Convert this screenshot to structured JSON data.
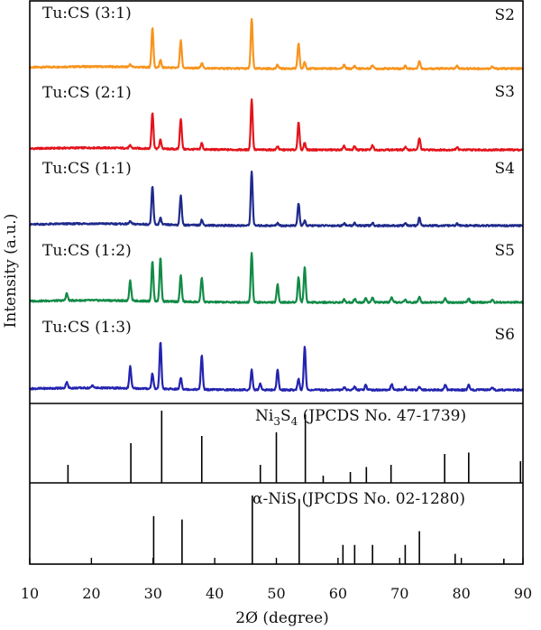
{
  "chart_data": {
    "type": "line",
    "xlabel": "2Ø (degree)",
    "ylabel": "Intensity (a.u.)",
    "xlim": [
      10,
      90
    ],
    "x_ticks": [
      "10",
      "20",
      "30",
      "40",
      "50",
      "60",
      "70",
      "80",
      "90"
    ],
    "grid": false,
    "series": [
      {
        "name": "Tu:CS (3:1)",
        "tag": "S2",
        "color": "#f7941d",
        "peaks": [
          [
            26.3,
            3
          ],
          [
            29.9,
            44
          ],
          [
            31.2,
            8
          ],
          [
            34.5,
            30
          ],
          [
            37.9,
            6
          ],
          [
            46.0,
            55
          ],
          [
            50.2,
            4
          ],
          [
            53.6,
            28
          ],
          [
            54.6,
            7
          ],
          [
            61.0,
            4
          ],
          [
            62.7,
            3
          ],
          [
            65.6,
            4
          ],
          [
            70.9,
            3
          ],
          [
            73.2,
            9
          ],
          [
            79.3,
            3
          ],
          [
            85.0,
            2
          ]
        ]
      },
      {
        "name": "Tu:CS (2:1)",
        "tag": "S3",
        "color": "#e3141c",
        "peaks": [
          [
            26.3,
            3
          ],
          [
            29.9,
            40
          ],
          [
            31.2,
            10
          ],
          [
            34.5,
            34
          ],
          [
            37.9,
            7
          ],
          [
            46.0,
            56
          ],
          [
            50.2,
            4
          ],
          [
            53.6,
            30
          ],
          [
            54.6,
            8
          ],
          [
            61.0,
            4
          ],
          [
            62.7,
            4
          ],
          [
            65.6,
            5
          ],
          [
            70.9,
            3
          ],
          [
            73.2,
            13
          ],
          [
            79.3,
            3
          ]
        ]
      },
      {
        "name": "Tu:CS (1:1)",
        "tag": "S4",
        "color": "#1f2a8c",
        "peaks": [
          [
            26.3,
            3
          ],
          [
            29.9,
            42
          ],
          [
            31.2,
            7
          ],
          [
            34.5,
            33
          ],
          [
            37.9,
            6
          ],
          [
            46.0,
            60
          ],
          [
            50.2,
            3
          ],
          [
            53.6,
            25
          ],
          [
            54.6,
            5
          ],
          [
            61.0,
            3
          ],
          [
            62.7,
            3
          ],
          [
            65.6,
            3
          ],
          [
            70.9,
            3
          ],
          [
            73.2,
            9
          ],
          [
            79.3,
            2
          ]
        ]
      },
      {
        "name": "Tu:CS (1:2)",
        "tag": "S5",
        "color": "#128b47",
        "peaks": [
          [
            16.0,
            8
          ],
          [
            26.3,
            22
          ],
          [
            29.9,
            44
          ],
          [
            31.2,
            48
          ],
          [
            34.5,
            29
          ],
          [
            37.9,
            27
          ],
          [
            46.0,
            55
          ],
          [
            50.2,
            20
          ],
          [
            53.6,
            28
          ],
          [
            54.6,
            39
          ],
          [
            61.0,
            3
          ],
          [
            62.7,
            4
          ],
          [
            64.5,
            5
          ],
          [
            65.6,
            5
          ],
          [
            68.7,
            5
          ],
          [
            70.9,
            3
          ],
          [
            73.2,
            7
          ],
          [
            77.4,
            5
          ],
          [
            81.2,
            4
          ],
          [
            85.0,
            3
          ]
        ]
      },
      {
        "name": "Tu:CS (1:3)",
        "tag": "S6",
        "color": "#2323b0",
        "peaks": [
          [
            16.0,
            7
          ],
          [
            20.2,
            3
          ],
          [
            26.3,
            24
          ],
          [
            29.9,
            17
          ],
          [
            31.2,
            52
          ],
          [
            34.5,
            13
          ],
          [
            37.9,
            38
          ],
          [
            46.0,
            22
          ],
          [
            47.4,
            7
          ],
          [
            50.2,
            22
          ],
          [
            53.6,
            12
          ],
          [
            54.6,
            48
          ],
          [
            61.0,
            3
          ],
          [
            62.7,
            4
          ],
          [
            64.5,
            6
          ],
          [
            68.7,
            6
          ],
          [
            70.9,
            3
          ],
          [
            73.2,
            4
          ],
          [
            77.4,
            6
          ],
          [
            81.2,
            6
          ],
          [
            85.0,
            3
          ]
        ]
      }
    ],
    "references": [
      {
        "name": "Ni3S4 (JPCDS No. 47-1739)",
        "label_main": "Ni",
        "label_sub1": "3",
        "label_mid": "S",
        "label_sub2": "4",
        "label_rest": " (JPCDS No. 47-1739)",
        "lines": [
          [
            16.2,
            25
          ],
          [
            26.4,
            55
          ],
          [
            31.4,
            100
          ],
          [
            37.9,
            65
          ],
          [
            47.4,
            25
          ],
          [
            50.0,
            70
          ],
          [
            54.7,
            95
          ],
          [
            57.6,
            10
          ],
          [
            62.0,
            15
          ],
          [
            64.6,
            22
          ],
          [
            68.6,
            25
          ],
          [
            77.3,
            40
          ],
          [
            81.2,
            42
          ],
          [
            89.6,
            30
          ]
        ]
      },
      {
        "name": "α-NiS (JPCDS No. 02-1280)",
        "label": "α-NiS (JPCDS No. 02-1280)",
        "lines": [
          [
            30.1,
            70
          ],
          [
            34.7,
            65
          ],
          [
            46.1,
            100
          ],
          [
            53.7,
            95
          ],
          [
            60.8,
            28
          ],
          [
            62.7,
            28
          ],
          [
            65.6,
            28
          ],
          [
            70.9,
            28
          ],
          [
            73.2,
            48
          ],
          [
            79.0,
            15
          ],
          [
            86.9,
            8
          ]
        ]
      }
    ]
  }
}
